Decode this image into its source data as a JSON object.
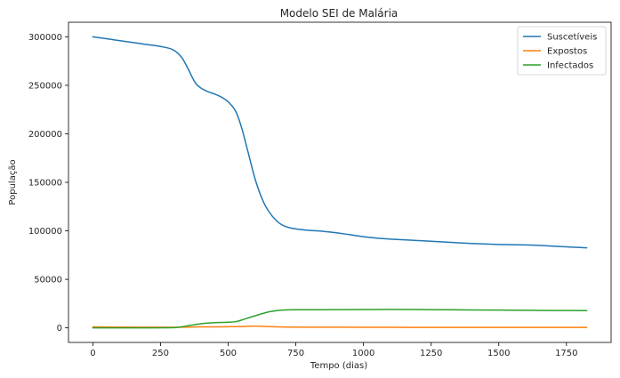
{
  "chart_data": {
    "type": "line",
    "title": "Modelo SEI de Malária",
    "xlabel": "Tempo (dias)",
    "ylabel": "População",
    "xlim": [
      -90,
      1915
    ],
    "ylim": [
      -15000,
      315000
    ],
    "xticks": [
      0,
      250,
      500,
      750,
      1000,
      1250,
      1500,
      1750
    ],
    "yticks": [
      0,
      50000,
      100000,
      150000,
      200000,
      250000,
      300000
    ],
    "legend_position": "top-right",
    "grid": false,
    "series": [
      {
        "name": "Suscetíveis",
        "color": "#1f77b4",
        "x": [
          0,
          50,
          100,
          150,
          200,
          250,
          300,
          330,
          350,
          380,
          400,
          430,
          450,
          480,
          500,
          530,
          550,
          570,
          600,
          630,
          650,
          680,
          700,
          730,
          750,
          800,
          850,
          900,
          950,
          1000,
          1050,
          1100,
          1200,
          1300,
          1400,
          1500,
          1600,
          1650,
          1700,
          1750,
          1800,
          1825
        ],
        "y": [
          300000,
          298000,
          296000,
          294000,
          292000,
          290000,
          286000,
          278000,
          268000,
          252000,
          247000,
          243000,
          241000,
          237000,
          233000,
          222000,
          206000,
          185000,
          153000,
          130000,
          120000,
          110000,
          106000,
          103000,
          102000,
          100500,
          99500,
          98000,
          96000,
          94000,
          92500,
          91500,
          90000,
          88500,
          87000,
          86000,
          85500,
          85000,
          84200,
          83500,
          82800,
          82500
        ]
      },
      {
        "name": "Expostos",
        "color": "#ff7f0e",
        "x": [
          0,
          100,
          200,
          300,
          400,
          500,
          550,
          600,
          650,
          700,
          800,
          1000,
          1200,
          1400,
          1600,
          1825
        ],
        "y": [
          1000,
          800,
          700,
          600,
          1000,
          1200,
          1400,
          1800,
          1300,
          900,
          700,
          600,
          500,
          500,
          500,
          500
        ]
      },
      {
        "name": "Infectados",
        "color": "#2ca02c",
        "x": [
          0,
          100,
          200,
          300,
          330,
          360,
          400,
          430,
          460,
          500,
          530,
          560,
          600,
          630,
          650,
          680,
          700,
          750,
          800,
          900,
          1000,
          1100,
          1200,
          1300,
          1400,
          1500,
          1600,
          1700,
          1825
        ],
        "y": [
          0,
          0,
          50,
          200,
          1200,
          2600,
          4300,
          5000,
          5500,
          5800,
          6500,
          9000,
          12500,
          15000,
          16500,
          17800,
          18300,
          18700,
          18700,
          18800,
          18900,
          19000,
          18900,
          18700,
          18500,
          18300,
          18100,
          17900,
          17800
        ]
      }
    ]
  }
}
